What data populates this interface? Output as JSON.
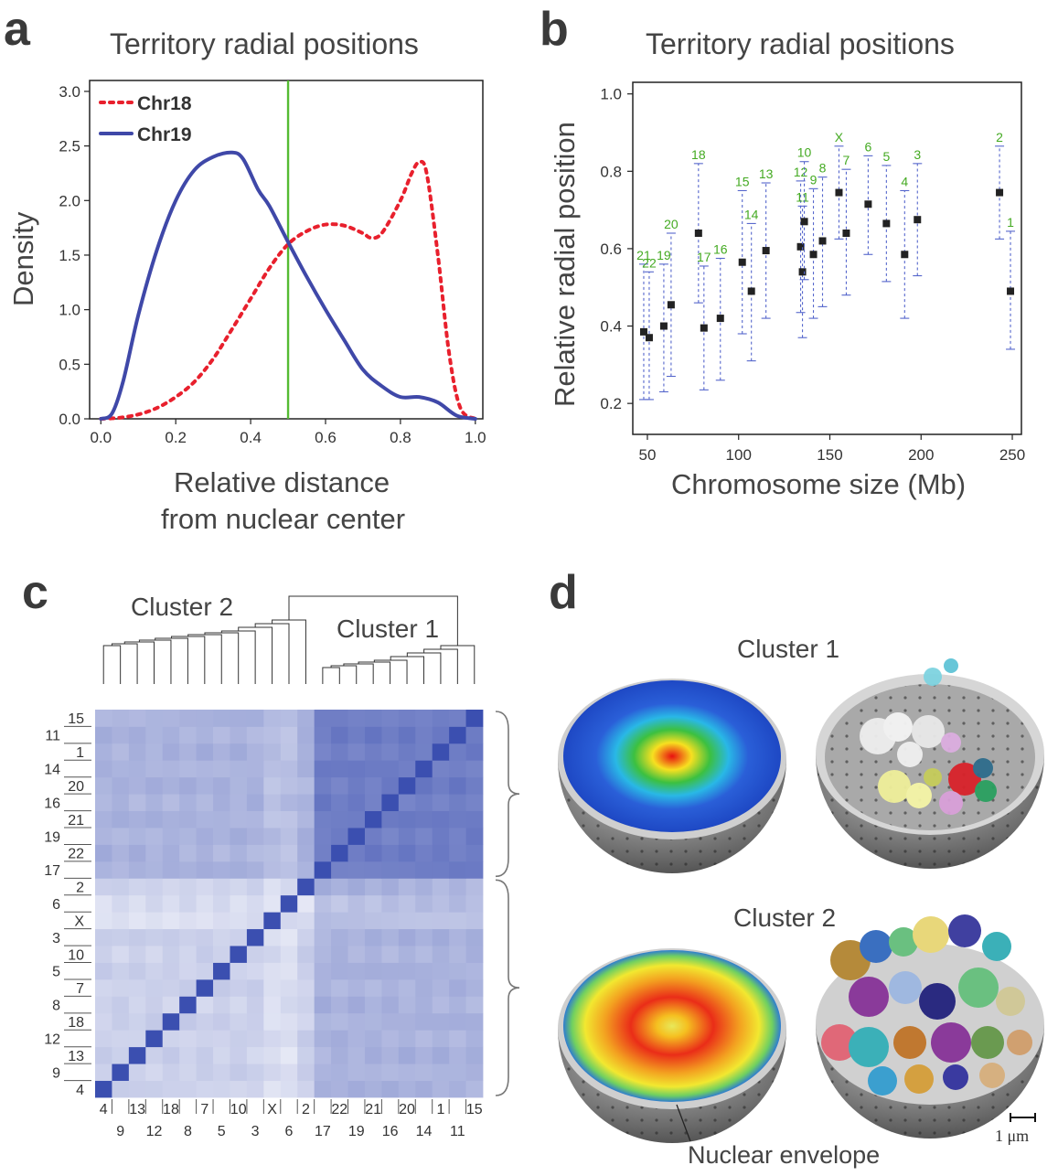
{
  "panels": {
    "a": {
      "letter": "a",
      "title": "Territory radial positions",
      "xlabel_line1": "Relative distance",
      "xlabel_line2": "from nuclear center",
      "ylabel": "Density"
    },
    "b": {
      "letter": "b",
      "title": "Territory radial positions",
      "xlabel": "Chromosome size (Mb)",
      "ylabel": "Relative radial position"
    },
    "c": {
      "letter": "c",
      "cluster2_label": "Cluster 2",
      "cluster1_label": "Cluster 1"
    },
    "d": {
      "letter": "d",
      "cluster1_label": "Cluster 1",
      "cluster2_label": "Cluster 2",
      "envelope_label": "Nuclear envelope",
      "scalebar_label": "1 μm"
    }
  },
  "colors": {
    "chr18": "#e8202d",
    "chr19": "#3f48a8",
    "vline": "#55bb33",
    "point": "#222222",
    "errorbar": "#5566cc",
    "chr_label": "#44aa22",
    "heat_dark": "#3b4fb0",
    "heat_light": "#f4f5fb"
  },
  "chart_data": [
    {
      "type": "line",
      "title": "Territory radial positions",
      "xlabel": "Relative distance from nuclear center",
      "ylabel": "Density",
      "xlim": [
        -0.03,
        1.02
      ],
      "ylim": [
        0,
        3.1
      ],
      "xticks": [
        "0.0",
        "0.2",
        "0.4",
        "0.6",
        "0.8",
        "1.0"
      ],
      "yticks": [
        "0.0",
        "0.5",
        "1.0",
        "1.5",
        "2.0",
        "2.5",
        "3.0"
      ],
      "vline": 0.5,
      "legend_position": "top-left",
      "series": [
        {
          "name": "Chr18",
          "style": "dashed",
          "x": [
            0.0,
            0.05,
            0.1,
            0.15,
            0.2,
            0.25,
            0.3,
            0.35,
            0.4,
            0.45,
            0.5,
            0.55,
            0.6,
            0.65,
            0.7,
            0.72,
            0.75,
            0.8,
            0.83,
            0.85,
            0.87,
            0.9,
            0.93,
            0.96,
            1.0
          ],
          "y": [
            0.0,
            0.01,
            0.04,
            0.1,
            0.2,
            0.34,
            0.55,
            0.82,
            1.1,
            1.38,
            1.6,
            1.72,
            1.78,
            1.77,
            1.7,
            1.66,
            1.7,
            2.0,
            2.25,
            2.35,
            2.25,
            1.5,
            0.6,
            0.1,
            0.0
          ]
        },
        {
          "name": "Chr19",
          "style": "solid",
          "x": [
            0.0,
            0.03,
            0.06,
            0.1,
            0.15,
            0.2,
            0.25,
            0.3,
            0.35,
            0.38,
            0.42,
            0.45,
            0.5,
            0.55,
            0.6,
            0.65,
            0.7,
            0.75,
            0.8,
            0.85,
            0.9,
            0.95,
            1.0
          ],
          "y": [
            0.0,
            0.05,
            0.35,
            0.95,
            1.55,
            2.0,
            2.28,
            2.4,
            2.44,
            2.38,
            2.1,
            1.95,
            1.62,
            1.3,
            1.0,
            0.72,
            0.45,
            0.3,
            0.2,
            0.2,
            0.15,
            0.03,
            0.0
          ]
        }
      ]
    },
    {
      "type": "scatter",
      "title": "Territory radial positions",
      "xlabel": "Chromosome size (Mb)",
      "ylabel": "Relative radial position",
      "xlim": [
        42,
        255
      ],
      "ylim": [
        0.12,
        1.03
      ],
      "xticks": [
        50,
        100,
        150,
        200,
        250
      ],
      "yticks": [
        "0.2",
        "0.4",
        "0.6",
        "0.8",
        "1.0"
      ],
      "points": [
        {
          "label": "21",
          "x": 48,
          "y": 0.385,
          "lo": 0.21,
          "hi": 0.56
        },
        {
          "label": "22",
          "x": 51,
          "y": 0.37,
          "lo": 0.21,
          "hi": 0.54
        },
        {
          "label": "19",
          "x": 59,
          "y": 0.4,
          "lo": 0.23,
          "hi": 0.56
        },
        {
          "label": "20",
          "x": 63,
          "y": 0.455,
          "lo": 0.27,
          "hi": 0.64
        },
        {
          "label": "18",
          "x": 78,
          "y": 0.64,
          "lo": 0.46,
          "hi": 0.82
        },
        {
          "label": "17",
          "x": 81,
          "y": 0.395,
          "lo": 0.235,
          "hi": 0.555
        },
        {
          "label": "16",
          "x": 90,
          "y": 0.42,
          "lo": 0.26,
          "hi": 0.575
        },
        {
          "label": "15",
          "x": 102,
          "y": 0.565,
          "lo": 0.38,
          "hi": 0.75
        },
        {
          "label": "14",
          "x": 107,
          "y": 0.49,
          "lo": 0.31,
          "hi": 0.665
        },
        {
          "label": "13",
          "x": 115,
          "y": 0.595,
          "lo": 0.42,
          "hi": 0.77
        },
        {
          "label": "12",
          "x": 134,
          "y": 0.605,
          "lo": 0.435,
          "hi": 0.775
        },
        {
          "label": "11",
          "x": 135,
          "y": 0.54,
          "lo": 0.37,
          "hi": 0.71
        },
        {
          "label": "10",
          "x": 136,
          "y": 0.67,
          "lo": 0.52,
          "hi": 0.825
        },
        {
          "label": "9",
          "x": 141,
          "y": 0.585,
          "lo": 0.42,
          "hi": 0.755
        },
        {
          "label": "8",
          "x": 146,
          "y": 0.62,
          "lo": 0.45,
          "hi": 0.785
        },
        {
          "label": "X",
          "x": 155,
          "y": 0.745,
          "lo": 0.625,
          "hi": 0.865
        },
        {
          "label": "7",
          "x": 159,
          "y": 0.64,
          "lo": 0.48,
          "hi": 0.805
        },
        {
          "label": "6",
          "x": 171,
          "y": 0.715,
          "lo": 0.585,
          "hi": 0.84
        },
        {
          "label": "5",
          "x": 181,
          "y": 0.665,
          "lo": 0.515,
          "hi": 0.815
        },
        {
          "label": "4",
          "x": 191,
          "y": 0.585,
          "lo": 0.42,
          "hi": 0.75
        },
        {
          "label": "3",
          "x": 198,
          "y": 0.675,
          "lo": 0.53,
          "hi": 0.82
        },
        {
          "label": "2",
          "x": 243,
          "y": 0.745,
          "lo": 0.625,
          "hi": 0.865
        },
        {
          "label": "1",
          "x": 249,
          "y": 0.49,
          "lo": 0.34,
          "hi": 0.645
        }
      ]
    },
    {
      "type": "heatmap",
      "col_labels_top": [
        "4",
        "13",
        "18",
        "7",
        "10",
        "X",
        "2",
        "22",
        "21",
        "20",
        "1",
        "15"
      ],
      "col_labels_bottom": [
        "9",
        "12",
        "8",
        "5",
        "3",
        "6",
        "17",
        "19",
        "16",
        "14",
        "11"
      ],
      "row_labels_right": [
        "15",
        "1",
        "20",
        "21",
        "22",
        "2",
        "X",
        "10",
        "7",
        "18",
        "13",
        "4"
      ],
      "row_labels_left": [
        "11",
        "14",
        "16",
        "19",
        "17",
        "6",
        "3",
        "5",
        "8",
        "12",
        "9"
      ],
      "order": [
        "4",
        "9",
        "13",
        "12",
        "18",
        "8",
        "7",
        "5",
        "10",
        "3",
        "X",
        "6",
        "2",
        "17",
        "22",
        "19",
        "21",
        "16",
        "20",
        "14",
        "1",
        "11",
        "15"
      ],
      "clusters": [
        {
          "name": "Cluster 2",
          "members": [
            "4",
            "9",
            "13",
            "12",
            "18",
            "8",
            "7",
            "5",
            "10",
            "3",
            "X",
            "6",
            "2"
          ]
        },
        {
          "name": "Cluster 1",
          "members": [
            "17",
            "22",
            "19",
            "21",
            "16",
            "20",
            "14",
            "1",
            "11",
            "15"
          ]
        }
      ]
    }
  ]
}
